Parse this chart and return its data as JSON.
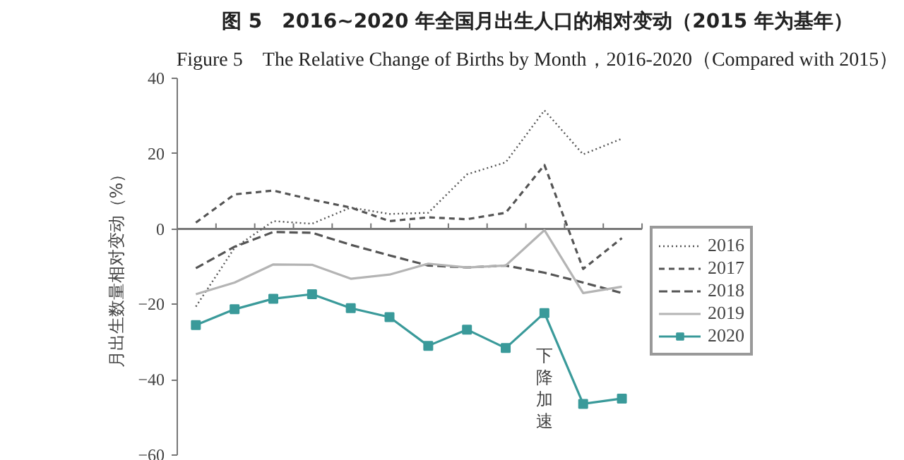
{
  "chart_data": {
    "type": "line",
    "title": "图 5　2016~2020 年全国月出生人口的相对变动（2015 年为基年）",
    "subtitle": "Figure 5　The Relative Change of Births by Month，2016-2020（Compared with 2015）",
    "ylabel": "月出生数量相对变动（%）",
    "annotations": [
      "下降加速"
    ],
    "categories": [
      null,
      null,
      null,
      null,
      null,
      null,
      null,
      null,
      null,
      null,
      null,
      null
    ],
    "series": [
      {
        "name": "2016",
        "color": "#555555",
        "line_style": "dotted",
        "marker": "none",
        "values": [
          -20.6,
          -5,
          2.1,
          1.4,
          5.7,
          4,
          4.3,
          14.5,
          17.7,
          31.5,
          19.8,
          24
        ]
      },
      {
        "name": "2017",
        "color": "#555555",
        "line_style": "dashed",
        "marker": "none",
        "values": [
          1.7,
          9.2,
          10.2,
          7.8,
          5.7,
          2.1,
          3.1,
          2.6,
          4.3,
          17,
          -10.6,
          -2.4
        ]
      },
      {
        "name": "2018",
        "color": "#555555",
        "line_style": "longdash",
        "marker": "none",
        "values": [
          -10.4,
          -4.7,
          -0.8,
          -1,
          -4.2,
          -7,
          -9.7,
          -10.2,
          -9.7,
          -11.6,
          -14.2,
          -17
        ]
      },
      {
        "name": "2019",
        "color": "#b4b4b4",
        "line_style": "solid",
        "marker": "none",
        "values": [
          -17.3,
          -14.2,
          -9.4,
          -9.5,
          -13.2,
          -12.1,
          -9.2,
          -10.2,
          -9.7,
          -0.3,
          -17,
          -15.3
        ]
      },
      {
        "name": "2020",
        "color": "#3a9a9a",
        "line_style": "solid",
        "marker": "square",
        "values": [
          -25.5,
          -21.3,
          -18.5,
          -17.3,
          -21,
          -23.4,
          -31,
          -26.7,
          -31.6,
          -22.3,
          -46.4,
          -45
        ]
      }
    ],
    "ylim": [
      -60,
      40
    ],
    "yticks": [
      -60,
      -40,
      -20,
      0,
      20,
      40
    ],
    "ref_lines": [
      {
        "axis": "y",
        "value": 0,
        "color": "#777777"
      }
    ],
    "grid": false,
    "legend": "right",
    "tick_labels": "y"
  }
}
